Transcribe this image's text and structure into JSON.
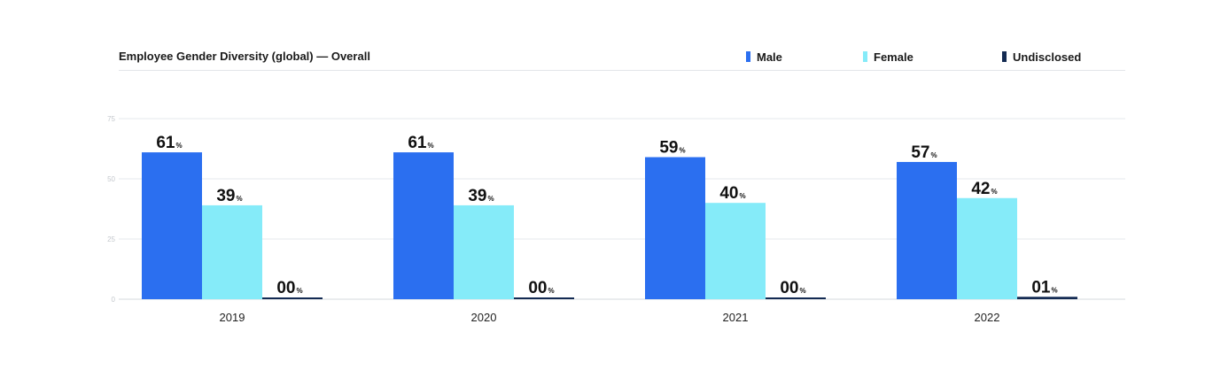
{
  "chart_data": {
    "type": "bar",
    "title": "Employee Gender Diversity (global) — Overall",
    "categories": [
      "2019",
      "2020",
      "2021",
      "2022"
    ],
    "series": [
      {
        "name": "Male",
        "values": [
          61,
          61,
          59,
          57
        ],
        "labels": [
          "61",
          "61",
          "59",
          "57"
        ],
        "color": "#2b6ff0"
      },
      {
        "name": "Female",
        "values": [
          39,
          39,
          40,
          42
        ],
        "labels": [
          "39",
          "39",
          "40",
          "42"
        ],
        "color": "#85ebf9"
      },
      {
        "name": "Undisclosed",
        "values": [
          0,
          0,
          0,
          1
        ],
        "labels": [
          "00",
          "00",
          "00",
          "01"
        ],
        "color": "#132a52"
      }
    ],
    "unit": "%",
    "ylim": [
      0,
      75
    ],
    "yticks": [
      "0",
      "25",
      "50",
      "75"
    ],
    "grid": true,
    "legend_position": "top-right"
  }
}
